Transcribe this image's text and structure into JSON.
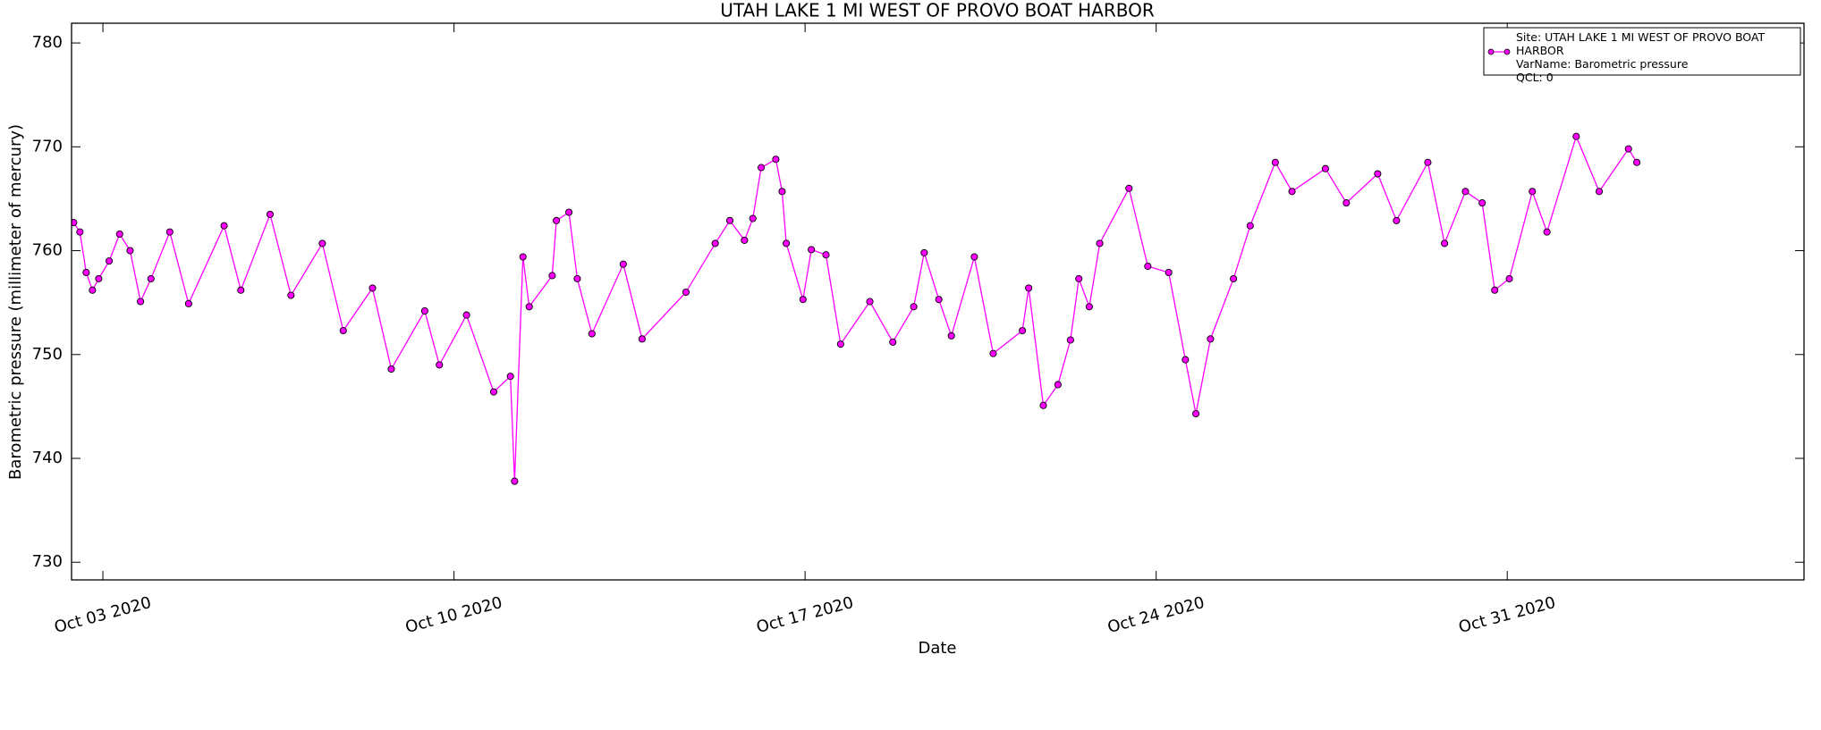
{
  "chart_data": {
    "type": "line",
    "title": "UTAH LAKE 1 MI WEST OF PROVO BOAT HARBOR",
    "x_label": "Date",
    "y_label": "Barometric pressure (millimeter of mercury)",
    "xlim": [
      "2020-10-02T09:00",
      "2020-11-05T22:00"
    ],
    "xticks": [
      {
        "value": "2020-10-03T00:00",
        "label": "Oct 03 2020"
      },
      {
        "value": "2020-10-10T00:00",
        "label": "Oct 10 2020"
      },
      {
        "value": "2020-10-17T00:00",
        "label": "Oct 17 2020"
      },
      {
        "value": "2020-10-24T00:00",
        "label": "Oct 24 2020"
      },
      {
        "value": "2020-10-31T00:00",
        "label": "Oct 31 2020"
      }
    ],
    "ylim": [
      728.3,
      781.9
    ],
    "yticks": [
      730,
      740,
      750,
      760,
      770,
      780
    ],
    "grid": false,
    "legend_position": "upper right",
    "x": [
      "2020-10-02T10:00",
      "2020-10-02T13:00",
      "2020-10-02T16:00",
      "2020-10-02T19:00",
      "2020-10-02T22:00",
      "2020-10-03T03:00",
      "2020-10-03T08:00",
      "2020-10-03T13:00",
      "2020-10-03T18:00",
      "2020-10-03T23:00",
      "2020-10-04T08:00",
      "2020-10-04T17:00",
      "2020-10-05T10:00",
      "2020-10-05T18:00",
      "2020-10-06T08:00",
      "2020-10-06T18:00",
      "2020-10-07T09:00",
      "2020-10-07T19:00",
      "2020-10-08T09:00",
      "2020-10-08T18:00",
      "2020-10-09T10:00",
      "2020-10-09T17:00",
      "2020-10-10T06:00",
      "2020-10-10T19:00",
      "2020-10-11T03:00",
      "2020-10-11T05:00",
      "2020-10-11T09:00",
      "2020-10-11T12:00",
      "2020-10-11T23:00",
      "2020-10-12T01:00",
      "2020-10-12T07:00",
      "2020-10-12T11:00",
      "2020-10-12T18:00",
      "2020-10-13T09:00",
      "2020-10-13T18:00",
      "2020-10-14T15:00",
      "2020-10-15T05:00",
      "2020-10-15T12:00",
      "2020-10-15T19:00",
      "2020-10-15T23:00",
      "2020-10-16T03:00",
      "2020-10-16T10:00",
      "2020-10-16T13:00",
      "2020-10-16T15:00",
      "2020-10-16T23:00",
      "2020-10-17T03:00",
      "2020-10-17T10:00",
      "2020-10-17T17:00",
      "2020-10-18T07:00",
      "2020-10-18T18:00",
      "2020-10-19T04:00",
      "2020-10-19T09:00",
      "2020-10-19T16:00",
      "2020-10-19T22:00",
      "2020-10-20T09:00",
      "2020-10-20T18:00",
      "2020-10-21T08:00",
      "2020-10-21T11:00",
      "2020-10-21T18:00",
      "2020-10-22T01:00",
      "2020-10-22T07:00",
      "2020-10-22T11:00",
      "2020-10-22T16:00",
      "2020-10-22T21:00",
      "2020-10-23T11:00",
      "2020-10-23T20:00",
      "2020-10-24T06:00",
      "2020-10-24T14:00",
      "2020-10-24T19:00",
      "2020-10-25T02:00",
      "2020-10-25T13:00",
      "2020-10-25T21:00",
      "2020-10-26T09:00",
      "2020-10-26T17:00",
      "2020-10-27T09:00",
      "2020-10-27T19:00",
      "2020-10-28T10:00",
      "2020-10-28T19:00",
      "2020-10-29T10:00",
      "2020-10-29T18:00",
      "2020-10-30T04:00",
      "2020-10-30T12:00",
      "2020-10-30T18:00",
      "2020-10-31T01:00",
      "2020-10-31T12:00",
      "2020-10-31T19:00",
      "2020-11-01T09:00",
      "2020-11-01T20:00",
      "2020-11-02T10:00",
      "2020-11-02T14:00"
    ],
    "series": [
      {
        "name": "Site: UTAH LAKE 1 MI WEST OF PROVO BOAT HARBOR\nVarName: Barometric pressure\nQCL: 0",
        "color": "#ff00ff",
        "marker_edge_color": "#000000",
        "values": [
          762.7,
          761.8,
          757.9,
          756.2,
          757.3,
          759.0,
          761.6,
          760.0,
          755.1,
          757.3,
          761.8,
          754.9,
          762.4,
          756.2,
          763.5,
          755.7,
          760.7,
          752.3,
          756.4,
          748.6,
          754.2,
          749.0,
          753.8,
          746.4,
          747.9,
          737.8,
          759.4,
          754.6,
          757.6,
          762.9,
          763.7,
          757.3,
          752.0,
          758.7,
          751.5,
          756.0,
          760.7,
          762.9,
          761.0,
          763.1,
          768.0,
          768.8,
          765.7,
          760.7,
          755.3,
          760.1,
          759.6,
          751.0,
          755.1,
          751.2,
          754.6,
          759.8,
          755.3,
          751.8,
          759.4,
          750.1,
          752.3,
          756.4,
          745.1,
          747.1,
          751.4,
          757.3,
          754.6,
          760.7,
          766.0,
          758.5,
          757.9,
          749.5,
          744.3,
          751.5,
          757.3,
          762.4,
          768.5,
          765.7,
          767.9,
          764.6,
          767.4,
          762.9,
          768.5,
          760.7,
          765.7,
          764.6,
          756.2,
          757.3,
          765.7,
          761.8,
          771.0,
          765.7,
          769.8,
          768.5
        ]
      }
    ]
  }
}
